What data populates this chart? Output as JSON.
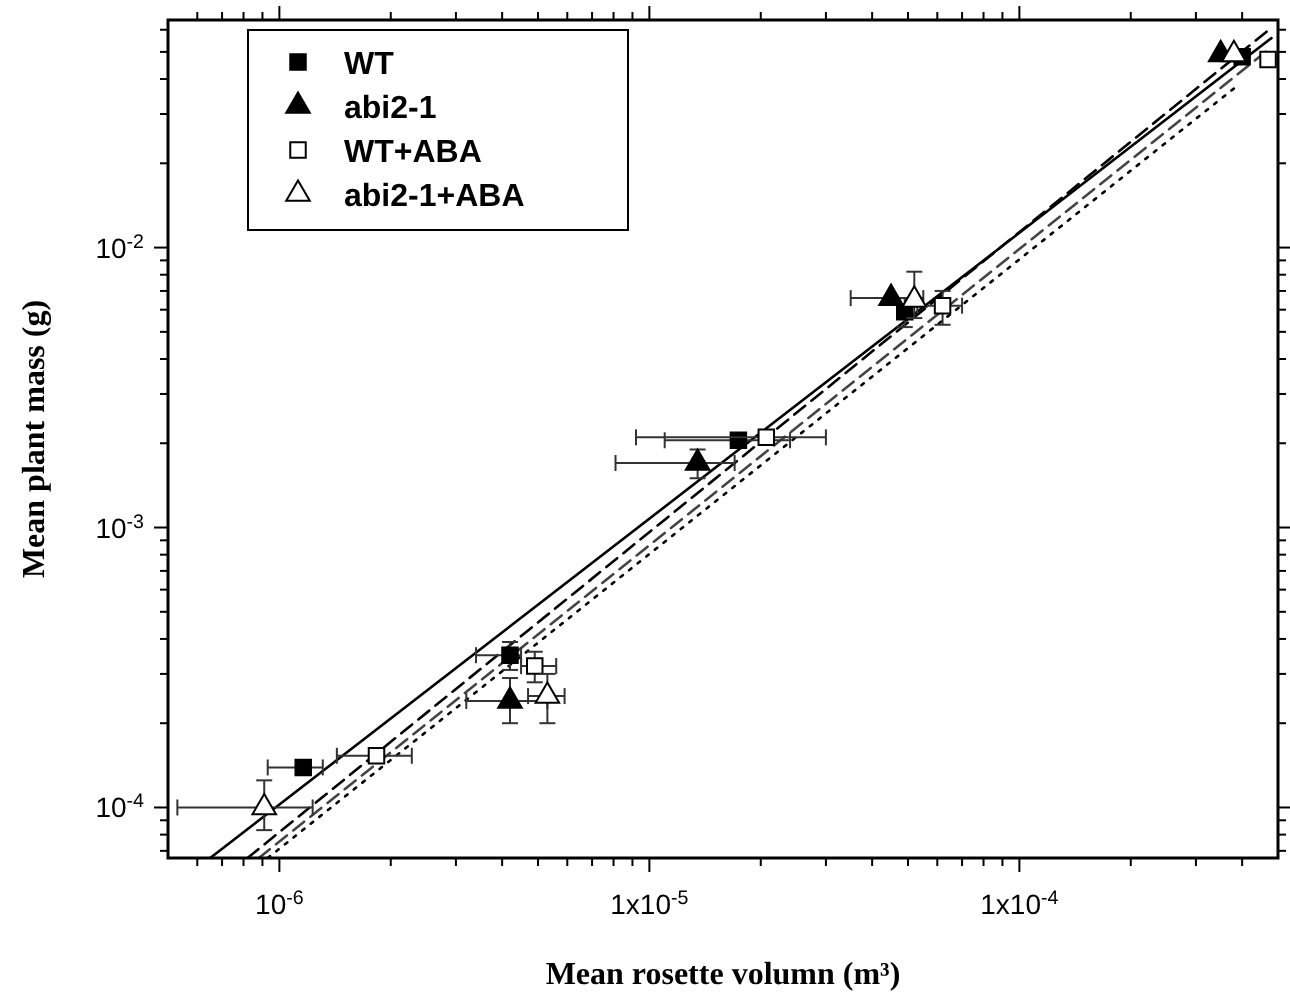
{
  "chart_data": {
    "type": "scatter",
    "xlabel": "Mean rosette volumn (m³)",
    "ylabel": "Mean plant mass (g)",
    "log": "xy",
    "legend": "top left",
    "xlim": [
      5e-07,
      0.0005
    ],
    "ylim": [
      6.6e-05,
      0.065
    ],
    "xticks": [
      {
        "value": 6e-07,
        "label": null
      },
      {
        "value": 7e-07,
        "label": null
      },
      {
        "value": 8e-07,
        "label": null
      },
      {
        "value": 9e-07,
        "label": null
      },
      {
        "value": 1e-06,
        "label": "10$^{-6}$"
      },
      {
        "value": 2e-06,
        "label": null
      },
      {
        "value": 3e-06,
        "label": null
      },
      {
        "value": 4e-06,
        "label": null
      },
      {
        "value": 5e-06,
        "label": null
      },
      {
        "value": 6e-06,
        "label": null
      },
      {
        "value": 7e-06,
        "label": null
      },
      {
        "value": 8e-06,
        "label": null
      },
      {
        "value": 9e-06,
        "label": null
      },
      {
        "value": 1e-05,
        "label": "1x10$^{-5}$"
      },
      {
        "value": 2e-05,
        "label": null
      },
      {
        "value": 3e-05,
        "label": null
      },
      {
        "value": 4e-05,
        "label": null
      },
      {
        "value": 5e-05,
        "label": null
      },
      {
        "value": 6e-05,
        "label": null
      },
      {
        "value": 7e-05,
        "label": null
      },
      {
        "value": 8e-05,
        "label": null
      },
      {
        "value": 9e-05,
        "label": null
      },
      {
        "value": 0.0001,
        "label": "1x10$^{-4}$"
      },
      {
        "value": 0.0002,
        "label": null
      },
      {
        "value": 0.0003,
        "label": null
      },
      {
        "value": 0.0004,
        "label": null
      }
    ],
    "yticks": [
      {
        "value": 7e-05,
        "label": null
      },
      {
        "value": 8e-05,
        "label": null
      },
      {
        "value": 9e-05,
        "label": null
      },
      {
        "value": 0.0001,
        "label": "10$^{-4}$"
      },
      {
        "value": 0.0002,
        "label": null
      },
      {
        "value": 0.0003,
        "label": null
      },
      {
        "value": 0.0004,
        "label": null
      },
      {
        "value": 0.0005,
        "label": null
      },
      {
        "value": 0.0006,
        "label": null
      },
      {
        "value": 0.0007,
        "label": null
      },
      {
        "value": 0.0008,
        "label": null
      },
      {
        "value": 0.0009,
        "label": null
      },
      {
        "value": 0.001,
        "label": "10$^{-3}$"
      },
      {
        "value": 0.002,
        "label": null
      },
      {
        "value": 0.003,
        "label": null
      },
      {
        "value": 0.004,
        "label": null
      },
      {
        "value": 0.005,
        "label": null
      },
      {
        "value": 0.006,
        "label": null
      },
      {
        "value": 0.007,
        "label": null
      },
      {
        "value": 0.008,
        "label": null
      },
      {
        "value": 0.009,
        "label": null
      },
      {
        "value": 0.01,
        "label": "10$^{-2}$"
      },
      {
        "value": 0.02,
        "label": null
      },
      {
        "value": 0.03,
        "label": null
      },
      {
        "value": 0.04,
        "label": null
      },
      {
        "value": 0.05,
        "label": null
      },
      {
        "value": 0.06,
        "label": null
      }
    ],
    "series": [
      {
        "name": "WT",
        "marker": "square",
        "color": "#000000",
        "x": [
          1.16e-06,
          4.2e-06,
          1.74e-05,
          4.9e-05,
          0.0004
        ],
        "values": [
          0.000139,
          0.00035,
          0.00205,
          0.0059,
          0.048
        ],
        "xerrors": [
          [
            9.3e-07,
            1.31e-06
          ],
          [
            3.4e-06,
            4.5e-06
          ],
          [
            1.1e-05,
            2.4e-05
          ],
          null,
          null
        ],
        "errors": [
          null,
          [
            0.00031,
            0.00039
          ],
          null,
          [
            0.0052,
            0.0066
          ],
          null
        ]
      },
      {
        "name": "abi2-1",
        "marker": "triangle",
        "color": "#000000",
        "x": [
          4.2e-06,
          1.35e-05,
          4.5e-05,
          0.00035
        ],
        "values": [
          0.00024,
          0.0017,
          0.0066,
          0.049
        ],
        "xerrors": [
          [
            3.2e-06,
            5.3e-06
          ],
          [
            8.1e-06,
            1.7e-05
          ],
          [
            3.5e-05,
            5.5e-05
          ],
          null
        ],
        "errors": [
          [
            0.0002,
            0.00029
          ],
          [
            0.0015,
            0.0019
          ],
          null,
          null
        ]
      },
      {
        "name": "WT+ABA",
        "marker": "square",
        "color": "#ffffff",
        "x": [
          1.83e-06,
          4.9e-06,
          2.07e-05,
          6.2e-05,
          0.00047
        ],
        "values": [
          0.000153,
          0.00032,
          0.0021,
          0.0062,
          0.047
        ],
        "xerrors": [
          [
            1.43e-06,
            2.28e-06
          ],
          [
            4.5e-06,
            5.6e-06
          ],
          [
            9.2e-06,
            3e-05
          ],
          [
            5.3e-05,
            7e-05
          ],
          null
        ],
        "errors": [
          null,
          [
            0.00028,
            0.00036
          ],
          null,
          [
            0.0053,
            0.007
          ],
          null
        ]
      },
      {
        "name": "abi2-1+ABA",
        "marker": "triangle",
        "color": "#ffffff",
        "x": [
          9.1e-07,
          5.3e-06,
          5.2e-05,
          0.00038
        ],
        "values": [
          0.0001,
          0.00025,
          0.0065,
          0.049
        ],
        "xerrors": [
          [
            5.3e-07,
            1.23e-06
          ],
          [
            4.7e-06,
            5.9e-06
          ],
          null,
          null
        ],
        "errors": [
          [
            8.3e-05,
            0.000125
          ],
          [
            0.0002,
            0.0003
          ],
          [
            0.0056,
            0.0082
          ],
          null
        ]
      },
      {
        "type": "line",
        "line_style": "solid",
        "color": "#000000",
        "x": [
          6.5e-07,
          0.00048
        ],
        "values": [
          6.6e-05,
          0.056
        ]
      },
      {
        "type": "line",
        "line_style": "dashed",
        "color": "#000000",
        "x": [
          8.2e-07,
          0.00048
        ],
        "values": [
          6.6e-05,
          0.061
        ]
      },
      {
        "type": "line",
        "line_style": "dashed",
        "color": "#444444",
        "x": [
          8.8e-07,
          0.00048
        ],
        "values": [
          6.6e-05,
          0.052
        ]
      },
      {
        "type": "line",
        "line_style": "dotted",
        "color": "#000000",
        "x": [
          9.3e-07,
          0.00038
        ],
        "values": [
          6.6e-05,
          0.037
        ]
      }
    ]
  }
}
